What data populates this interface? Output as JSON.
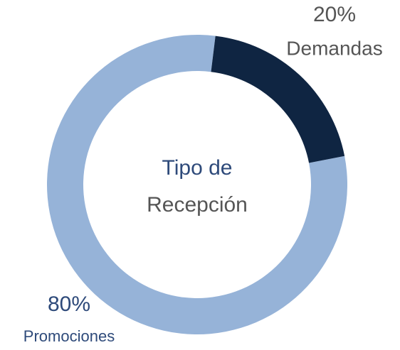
{
  "chart_data": {
    "type": "donut",
    "center_text": [
      "Tipo de",
      "Recepción"
    ],
    "categories": [
      "Demandas",
      "Promociones"
    ],
    "values": [
      20,
      80
    ],
    "value_labels": [
      "20%",
      "80%"
    ],
    "colors": [
      "#0f2542",
      "#96b3d8"
    ]
  }
}
